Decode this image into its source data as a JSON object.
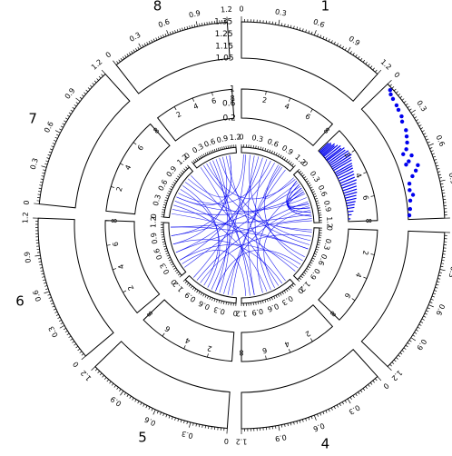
{
  "chart_data": {
    "type": "circos",
    "segments": [
      {
        "label": "1",
        "angle_start": 0,
        "angle_end": 42
      },
      {
        "label": "2",
        "angle_start": 46,
        "angle_end": 88
      },
      {
        "label": "3",
        "angle_start": 92,
        "angle_end": 134
      },
      {
        "label": "4",
        "angle_start": 138,
        "angle_end": 180
      },
      {
        "label": "5",
        "angle_start": 184,
        "angle_end": 226
      },
      {
        "label": "6",
        "angle_start": 230,
        "angle_end": 272
      },
      {
        "label": "7",
        "angle_start": 276,
        "angle_end": 318
      },
      {
        "label": "8",
        "angle_start": 322,
        "angle_end": 356
      }
    ],
    "outer_axis": {
      "range": [
        0,
        1.2
      ],
      "tick_labels": [
        "0",
        "0.3",
        "0.6",
        "0.9",
        "1.2"
      ]
    },
    "middle_axis": {
      "range": [
        0,
        8
      ],
      "tick_labels": [
        "2",
        "4",
        "6",
        "8"
      ]
    },
    "inner_axis": {
      "range": [
        0,
        1.2
      ],
      "tick_labels": [
        "0",
        "0.3",
        "0.6",
        "0.9",
        "1.2"
      ]
    },
    "track_outer": {
      "segment": "2",
      "ylim": [
        1.05,
        1.35
      ],
      "y_tick_labels": [
        "1.05",
        "1.15",
        "1.25",
        "1.35"
      ],
      "points": [
        {
          "x": 0.05,
          "y": 1.33
        },
        {
          "x": 0.08,
          "y": 1.31
        },
        {
          "x": 0.12,
          "y": 1.3
        },
        {
          "x": 0.18,
          "y": 1.29
        },
        {
          "x": 0.22,
          "y": 1.28
        },
        {
          "x": 0.28,
          "y": 1.27
        },
        {
          "x": 0.32,
          "y": 1.25
        },
        {
          "x": 0.4,
          "y": 1.24
        },
        {
          "x": 0.45,
          "y": 1.22
        },
        {
          "x": 0.5,
          "y": 1.2
        },
        {
          "x": 0.55,
          "y": 1.17
        },
        {
          "x": 0.58,
          "y": 1.13
        },
        {
          "x": 0.62,
          "y": 1.19
        },
        {
          "x": 0.66,
          "y": 1.15
        },
        {
          "x": 0.68,
          "y": 1.12
        },
        {
          "x": 0.72,
          "y": 1.21
        },
        {
          "x": 0.76,
          "y": 1.18
        },
        {
          "x": 0.8,
          "y": 1.14
        },
        {
          "x": 0.86,
          "y": 1.1
        },
        {
          "x": 0.92,
          "y": 1.09
        },
        {
          "x": 0.97,
          "y": 1.11
        },
        {
          "x": 1.02,
          "y": 1.08
        },
        {
          "x": 1.1,
          "y": 1.07
        },
        {
          "x": 1.16,
          "y": 1.06
        }
      ]
    },
    "track_middle": {
      "segment": "2",
      "ylim": [
        0.2,
        1.0
      ],
      "y_tick_labels": [
        "0.2",
        "0.6",
        "1"
      ],
      "bars": [
        {
          "x": 0.02,
          "y": 0.55
        },
        {
          "x": 0.04,
          "y": 0.6
        },
        {
          "x": 0.06,
          "y": 0.58
        },
        {
          "x": 0.08,
          "y": 0.66
        },
        {
          "x": 0.1,
          "y": 0.62
        },
        {
          "x": 0.12,
          "y": 0.7
        },
        {
          "x": 0.15,
          "y": 0.75
        },
        {
          "x": 0.18,
          "y": 0.72
        },
        {
          "x": 0.2,
          "y": 0.8
        },
        {
          "x": 0.23,
          "y": 0.78
        },
        {
          "x": 0.26,
          "y": 0.84
        },
        {
          "x": 0.29,
          "y": 0.82
        },
        {
          "x": 0.32,
          "y": 0.86
        },
        {
          "x": 0.35,
          "y": 0.8
        },
        {
          "x": 0.38,
          "y": 0.78
        },
        {
          "x": 0.42,
          "y": 0.74
        },
        {
          "x": 0.45,
          "y": 0.72
        },
        {
          "x": 0.48,
          "y": 0.7
        },
        {
          "x": 0.52,
          "y": 0.68
        },
        {
          "x": 0.56,
          "y": 0.66
        },
        {
          "x": 0.6,
          "y": 0.64
        },
        {
          "x": 0.64,
          "y": 0.66
        },
        {
          "x": 0.68,
          "y": 0.62
        },
        {
          "x": 0.72,
          "y": 0.6
        },
        {
          "x": 0.76,
          "y": 0.58
        },
        {
          "x": 0.8,
          "y": 0.56
        },
        {
          "x": 0.84,
          "y": 0.52
        },
        {
          "x": 0.88,
          "y": 0.5
        },
        {
          "x": 0.92,
          "y": 0.46
        },
        {
          "x": 0.96,
          "y": 0.42
        },
        {
          "x": 1.0,
          "y": 0.4
        },
        {
          "x": 1.05,
          "y": 0.36
        },
        {
          "x": 1.1,
          "y": 0.3
        },
        {
          "x": 1.16,
          "y": 0.26
        }
      ]
    },
    "links": [
      {
        "from": [
          "1",
          0.1
        ],
        "to": [
          "5",
          0.6
        ]
      },
      {
        "from": [
          "1",
          0.3
        ],
        "to": [
          "4",
          0.9
        ]
      },
      {
        "from": [
          "1",
          0.5
        ],
        "to": [
          "6",
          0.3
        ]
      },
      {
        "from": [
          "1",
          0.7
        ],
        "to": [
          "7",
          0.6
        ]
      },
      {
        "from": [
          "1",
          0.9
        ],
        "to": [
          "3",
          0.8
        ]
      },
      {
        "from": [
          "1",
          1.1
        ],
        "to": [
          "5",
          0.2
        ]
      },
      {
        "from": [
          "2",
          0.1
        ],
        "to": [
          "8",
          0.3
        ]
      },
      {
        "from": [
          "2",
          0.3
        ],
        "to": [
          "6",
          0.9
        ]
      },
      {
        "from": [
          "2",
          0.5
        ],
        "to": [
          "7",
          0.2
        ]
      },
      {
        "from": [
          "2",
          0.7
        ],
        "to": [
          "5",
          1.0
        ]
      },
      {
        "from": [
          "2",
          0.9
        ],
        "to": [
          "4",
          0.4
        ]
      },
      {
        "from": [
          "2",
          1.1
        ],
        "to": [
          "6",
          0.5
        ]
      },
      {
        "from": [
          "3",
          0.1
        ],
        "to": [
          "7",
          0.9
        ]
      },
      {
        "from": [
          "3",
          0.3
        ],
        "to": [
          "8",
          0.7
        ]
      },
      {
        "from": [
          "3",
          0.5
        ],
        "to": [
          "6",
          1.1
        ]
      },
      {
        "from": [
          "3",
          0.7
        ],
        "to": [
          "1",
          0.2
        ]
      },
      {
        "from": [
          "3",
          0.9
        ],
        "to": [
          "5",
          0.5
        ]
      },
      {
        "from": [
          "3",
          1.1
        ],
        "to": [
          "7",
          0.4
        ]
      },
      {
        "from": [
          "4",
          0.1
        ],
        "to": [
          "8",
          0.9
        ]
      },
      {
        "from": [
          "4",
          0.3
        ],
        "to": [
          "7",
          1.1
        ]
      },
      {
        "from": [
          "4",
          0.5
        ],
        "to": [
          "1",
          0.6
        ]
      },
      {
        "from": [
          "4",
          0.7
        ],
        "to": [
          "2",
          0.4
        ]
      },
      {
        "from": [
          "4",
          0.9
        ],
        "to": [
          "8",
          0.1
        ]
      },
      {
        "from": [
          "4",
          1.1
        ],
        "to": [
          "6",
          0.2
        ]
      },
      {
        "from": [
          "5",
          0.1
        ],
        "to": [
          "1",
          1.0
        ]
      },
      {
        "from": [
          "5",
          0.3
        ],
        "to": [
          "2",
          0.8
        ]
      },
      {
        "from": [
          "5",
          0.5
        ],
        "to": [
          "8",
          0.5
        ]
      },
      {
        "from": [
          "5",
          0.7
        ],
        "to": [
          "7",
          0.7
        ]
      },
      {
        "from": [
          "5",
          0.9
        ],
        "to": [
          "3",
          0.2
        ]
      },
      {
        "from": [
          "5",
          1.1
        ],
        "to": [
          "1",
          0.4
        ]
      },
      {
        "from": [
          "6",
          0.1
        ],
        "to": [
          "2",
          0.2
        ]
      },
      {
        "from": [
          "6",
          0.3
        ],
        "to": [
          "3",
          1.0
        ]
      },
      {
        "from": [
          "6",
          0.5
        ],
        "to": [
          "1",
          0.8
        ]
      },
      {
        "from": [
          "6",
          0.7
        ],
        "to": [
          "4",
          0.2
        ]
      },
      {
        "from": [
          "6",
          0.9
        ],
        "to": [
          "8",
          1.0
        ]
      },
      {
        "from": [
          "6",
          1.1
        ],
        "to": [
          "2",
          1.0
        ]
      },
      {
        "from": [
          "7",
          0.1
        ],
        "to": [
          "3",
          0.5
        ]
      },
      {
        "from": [
          "7",
          0.3
        ],
        "to": [
          "4",
          0.6
        ]
      },
      {
        "from": [
          "7",
          0.5
        ],
        "to": [
          "2",
          0.6
        ]
      },
      {
        "from": [
          "7",
          0.8
        ],
        "to": [
          "5",
          0.8
        ]
      },
      {
        "from": [
          "7",
          1.0
        ],
        "to": [
          "1",
          0.05
        ]
      },
      {
        "from": [
          "8",
          0.2
        ],
        "to": [
          "3",
          0.4
        ]
      },
      {
        "from": [
          "8",
          0.4
        ],
        "to": [
          "4",
          1.0
        ]
      },
      {
        "from": [
          "8",
          0.6
        ],
        "to": [
          "5",
          0.4
        ]
      },
      {
        "from": [
          "8",
          0.8
        ],
        "to": [
          "6",
          0.7
        ]
      },
      {
        "from": [
          "8",
          1.0
        ],
        "to": [
          "7",
          0.5
        ]
      },
      {
        "from": [
          "2",
          0.15
        ],
        "to": [
          "2",
          1.05
        ]
      },
      {
        "from": [
          "2",
          0.25
        ],
        "to": [
          "2",
          0.95
        ]
      },
      {
        "from": [
          "2",
          0.35
        ],
        "to": [
          "2",
          0.85
        ]
      },
      {
        "from": [
          "2",
          0.45
        ],
        "to": [
          "2",
          0.75
        ]
      },
      {
        "from": [
          "1",
          0.95
        ],
        "to": [
          "2",
          0.05
        ]
      },
      {
        "from": [
          "2",
          1.15
        ],
        "to": [
          "3",
          0.05
        ]
      }
    ],
    "colors": {
      "data": "#0000ee",
      "lines": "#000000"
    }
  }
}
